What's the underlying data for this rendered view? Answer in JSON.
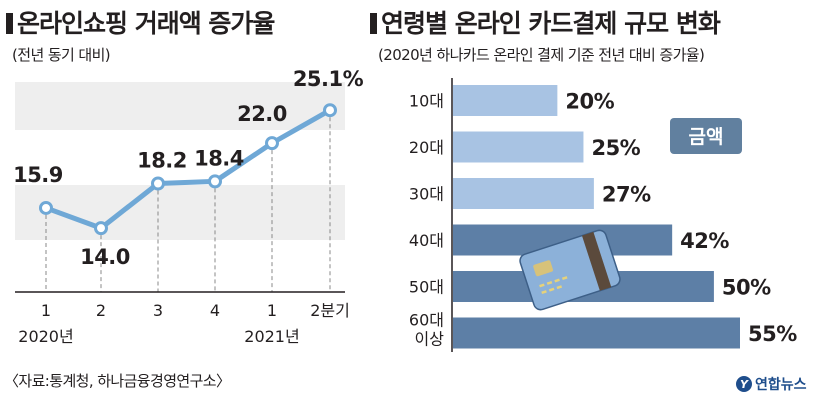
{
  "left_chart": {
    "title": "온라인쇼핑 거래액 증가율",
    "subtitle": "(전년 동기 대비)"
  },
  "right_chart": {
    "title": "연령별 온라인 카드결제 규모 변화",
    "subtitle": "(2020년 하나카드 온라인 결제 기준 전년 대비 증가율)",
    "badge": "금액"
  },
  "source": "〈자료:통계청, 하나금융경영연구소〉",
  "logo": {
    "text": "연합뉴스",
    "mark": "Y"
  },
  "colors": {
    "line": "#6fa8d6",
    "band": "#eeeeee",
    "bar_light": "#a8c3e3",
    "bar_dark": "#5d7fa6",
    "badge": "#61809f"
  },
  "chart_data": [
    {
      "type": "line",
      "title": "온라인쇼핑 거래액 증가율",
      "subtitle": "(전년 동기 대비)",
      "categories": [
        "1",
        "2",
        "3",
        "4",
        "1",
        "2분기"
      ],
      "year_labels": [
        "2020년",
        "2021년"
      ],
      "values": [
        15.9,
        14.0,
        18.2,
        18.4,
        22.0,
        25.1
      ],
      "value_labels": [
        "15.9",
        "14.0",
        "18.2",
        "18.4",
        "22.0",
        "25.1%"
      ],
      "ylim": [
        11,
        27
      ],
      "grid": "horizontal bands"
    },
    {
      "type": "bar",
      "orientation": "horizontal",
      "title": "연령별 온라인 카드결제 규모 변화",
      "subtitle": "(2020년 하나카드 온라인 결제 기준 전년 대비 증가율)",
      "categories": [
        "10대",
        "20대",
        "30대",
        "40대",
        "50대",
        "60대 이상"
      ],
      "values": [
        20,
        25,
        27,
        42,
        50,
        55
      ],
      "value_labels": [
        "20%",
        "25%",
        "27%",
        "42%",
        "50%",
        "55%"
      ],
      "legend": "금액",
      "xlim": [
        0,
        55
      ]
    }
  ]
}
